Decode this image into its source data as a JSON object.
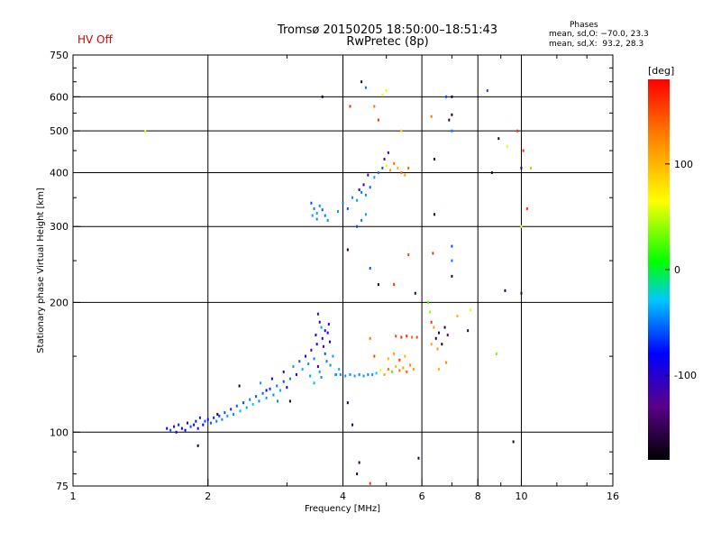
{
  "header": {
    "status": "HV Off",
    "status_color": "#d20000",
    "title_line1": "Tromsø 20150205 18:50:00–18:51:43",
    "title_line2": "RwPretec (8p)",
    "phases_label": "Phases",
    "phases_o": "mean, sd,O: −70.0, 23.3",
    "phases_x": "mean, sd,X:  93.2, 28.3"
  },
  "chart_data": {
    "type": "scatter",
    "xlabel": "Frequency [MHz]",
    "ylabel": "Stationary phase Virtual Height [km]",
    "xscale": "log",
    "yscale": "log",
    "xlim": [
      1,
      16
    ],
    "ylim": [
      75,
      750
    ],
    "x_ticks": [
      1,
      2,
      4,
      6,
      8,
      10,
      16
    ],
    "x_tick_labels": [
      "1",
      "2",
      "4",
      "6",
      "8",
      "10",
      "16"
    ],
    "x_grid": [
      2,
      4,
      6,
      8,
      10
    ],
    "y_ticks": [
      75,
      100,
      200,
      300,
      400,
      500,
      600,
      750
    ],
    "y_tick_labels": [
      "75",
      "100",
      "200",
      "300",
      "400",
      "500",
      "600",
      "750"
    ],
    "y_grid": [
      100,
      200,
      300,
      400,
      500,
      600
    ],
    "colorbar": {
      "label": "[deg]",
      "range": [
        -180,
        180
      ],
      "ticks": [
        100,
        0,
        -100
      ],
      "tick_labels": [
        "100",
        "0",
        "-100"
      ]
    },
    "series": [
      {
        "name": "echoes",
        "points": [
          [
            1.45,
            498,
            60
          ],
          [
            1.62,
            102,
            -90
          ],
          [
            1.65,
            101,
            -60
          ],
          [
            1.68,
            103,
            -110
          ],
          [
            1.7,
            100,
            -95
          ],
          [
            1.72,
            104,
            -70
          ],
          [
            1.75,
            102,
            -100
          ],
          [
            1.78,
            101,
            -80
          ],
          [
            1.8,
            105,
            -105
          ],
          [
            1.83,
            103,
            -60
          ],
          [
            1.86,
            104,
            -95
          ],
          [
            1.88,
            106,
            -75
          ],
          [
            1.9,
            102,
            -100
          ],
          [
            1.92,
            108,
            -70
          ],
          [
            1.95,
            104,
            -85
          ],
          [
            1.97,
            106,
            -60
          ],
          [
            2.0,
            107,
            -80
          ],
          [
            2.03,
            105,
            -55
          ],
          [
            2.06,
            108,
            -70
          ],
          [
            2.09,
            106,
            -50
          ],
          [
            2.12,
            109,
            -65
          ],
          [
            2.15,
            107,
            -45
          ],
          [
            2.18,
            111,
            -60
          ],
          [
            2.21,
            109,
            -40
          ],
          [
            2.25,
            113,
            -70
          ],
          [
            2.28,
            110,
            -45
          ],
          [
            2.32,
            115,
            -55
          ],
          [
            2.36,
            112,
            -35
          ],
          [
            2.4,
            117,
            -65
          ],
          [
            2.44,
            114,
            -40
          ],
          [
            2.48,
            119,
            -50
          ],
          [
            2.52,
            116,
            -30
          ],
          [
            2.56,
            121,
            -60
          ],
          [
            2.6,
            118,
            -45
          ],
          [
            2.65,
            123,
            -55
          ],
          [
            2.7,
            120,
            -40
          ],
          [
            2.75,
            126,
            -70
          ],
          [
            2.8,
            122,
            -45
          ],
          [
            2.85,
            128,
            -50
          ],
          [
            2.9,
            125,
            -35
          ],
          [
            2.95,
            131,
            -60
          ],
          [
            3.0,
            127,
            -90
          ],
          [
            2.62,
            130,
            -40
          ],
          [
            2.7,
            125,
            -95
          ],
          [
            2.78,
            133,
            -100
          ],
          [
            2.86,
            118,
            -45
          ],
          [
            2.95,
            138,
            -105
          ],
          [
            3.05,
            133,
            -50
          ],
          [
            3.1,
            142,
            -40
          ],
          [
            3.15,
            136,
            -95
          ],
          [
            3.2,
            146,
            -60
          ],
          [
            3.25,
            140,
            -35
          ],
          [
            3.3,
            150,
            -100
          ],
          [
            3.35,
            144,
            -45
          ],
          [
            3.4,
            155,
            -110
          ],
          [
            3.45,
            148,
            -50
          ],
          [
            3.5,
            160,
            -95
          ],
          [
            3.55,
            138,
            -40
          ],
          [
            3.6,
            165,
            -105
          ],
          [
            3.65,
            152,
            -60
          ],
          [
            3.7,
            170,
            -90
          ],
          [
            3.75,
            143,
            -45
          ],
          [
            3.38,
            135,
            -40
          ],
          [
            3.45,
            130,
            -35
          ],
          [
            3.52,
            142,
            -100
          ],
          [
            3.58,
            134,
            -45
          ],
          [
            3.62,
            158,
            -110
          ],
          [
            3.68,
            146,
            -50
          ],
          [
            3.74,
            162,
            -95
          ],
          [
            3.8,
            150,
            -40
          ],
          [
            3.86,
            136,
            -60
          ],
          [
            3.92,
            140,
            -35
          ],
          [
            3.52,
            188,
            -105
          ],
          [
            3.55,
            180,
            -95
          ],
          [
            3.58,
            175,
            -40
          ],
          [
            3.48,
            168,
            -110
          ],
          [
            3.65,
            172,
            -90
          ],
          [
            3.72,
            178,
            -100
          ],
          [
            3.85,
            136,
            -40
          ],
          [
            3.95,
            136,
            -45
          ],
          [
            4.05,
            135,
            -40
          ],
          [
            4.15,
            136,
            -45
          ],
          [
            4.25,
            135,
            -40
          ],
          [
            4.35,
            136,
            -45
          ],
          [
            4.45,
            135,
            -40
          ],
          [
            4.55,
            136,
            -45
          ],
          [
            4.65,
            136,
            -40
          ],
          [
            4.75,
            137,
            -30
          ],
          [
            4.85,
            139,
            60
          ],
          [
            4.95,
            136,
            110
          ],
          [
            5.05,
            140,
            130
          ],
          [
            5.15,
            138,
            20
          ],
          [
            5.25,
            142,
            100
          ],
          [
            5.35,
            139,
            130
          ],
          [
            5.45,
            141,
            110
          ],
          [
            5.55,
            138,
            140
          ],
          [
            5.65,
            143,
            120
          ],
          [
            5.75,
            140,
            110
          ],
          [
            5.05,
            148,
            100
          ],
          [
            5.2,
            152,
            110
          ],
          [
            5.35,
            147,
            160
          ],
          [
            5.5,
            150,
            100
          ],
          [
            4.7,
            150,
            150
          ],
          [
            4.6,
            165,
            130
          ],
          [
            5.25,
            167,
            150
          ],
          [
            5.4,
            166,
            160
          ],
          [
            5.55,
            167,
            170
          ],
          [
            5.7,
            166,
            130
          ],
          [
            5.85,
            166,
            150
          ],
          [
            6.2,
            200,
            20
          ],
          [
            6.25,
            190,
            40
          ],
          [
            6.3,
            180,
            160
          ],
          [
            6.38,
            175,
            110
          ],
          [
            6.45,
            165,
            -160
          ],
          [
            6.55,
            170,
            -150
          ],
          [
            6.65,
            160,
            -170
          ],
          [
            6.75,
            175,
            -160
          ],
          [
            6.85,
            168,
            -140
          ],
          [
            6.3,
            160,
            110
          ],
          [
            6.5,
            156,
            110
          ],
          [
            7.2,
            186,
            100
          ],
          [
            7.7,
            192,
            60
          ],
          [
            7.6,
            172,
            -160
          ],
          [
            6.8,
            145,
            120
          ],
          [
            6.55,
            140,
            100
          ],
          [
            8.8,
            152,
            30
          ],
          [
            9.2,
            213,
            -160
          ],
          [
            9.6,
            95,
            -160
          ],
          [
            10.0,
            210,
            -160
          ],
          [
            3.4,
            340,
            -60
          ],
          [
            3.45,
            330,
            -50
          ],
          [
            3.5,
            322,
            -40
          ],
          [
            3.55,
            335,
            -45
          ],
          [
            3.6,
            328,
            -60
          ],
          [
            3.65,
            318,
            -50
          ],
          [
            3.5,
            312,
            -45
          ],
          [
            3.42,
            318,
            -40
          ],
          [
            3.7,
            310,
            -45
          ],
          [
            3.9,
            325,
            -40
          ],
          [
            4.0,
            340,
            -50
          ],
          [
            4.1,
            330,
            -60
          ],
          [
            4.2,
            350,
            -45
          ],
          [
            4.3,
            345,
            -40
          ],
          [
            4.4,
            360,
            -50
          ],
          [
            4.5,
            355,
            -45
          ],
          [
            4.6,
            370,
            -55
          ],
          [
            4.7,
            390,
            -40
          ],
          [
            4.8,
            400,
            -50
          ],
          [
            4.9,
            410,
            -60
          ],
          [
            5.0,
            415,
            60
          ],
          [
            5.1,
            405,
            110
          ],
          [
            5.2,
            420,
            130
          ],
          [
            5.3,
            410,
            100
          ],
          [
            5.4,
            400,
            130
          ],
          [
            5.5,
            395,
            110
          ],
          [
            5.6,
            410,
            140
          ],
          [
            4.3,
            300,
            -60
          ],
          [
            4.4,
            310,
            -50
          ],
          [
            4.5,
            320,
            -40
          ],
          [
            4.35,
            365,
            -110
          ],
          [
            4.45,
            375,
            -100
          ],
          [
            4.55,
            395,
            -110
          ],
          [
            4.95,
            430,
            -110
          ],
          [
            5.05,
            445,
            -110
          ],
          [
            4.1,
            265,
            -160
          ],
          [
            4.6,
            240,
            -60
          ],
          [
            5.2,
            220,
            160
          ],
          [
            5.6,
            258,
            150
          ],
          [
            5.8,
            210,
            -160
          ],
          [
            4.8,
            220,
            -160
          ],
          [
            3.6,
            600,
            -160
          ],
          [
            4.15,
            570,
            160
          ],
          [
            4.4,
            650,
            -160
          ],
          [
            4.5,
            630,
            -50
          ],
          [
            4.7,
            570,
            130
          ],
          [
            4.8,
            530,
            160
          ],
          [
            4.9,
            605,
            60
          ],
          [
            5.0,
            620,
            70
          ],
          [
            5.4,
            500,
            80
          ],
          [
            6.3,
            540,
            130
          ],
          [
            6.9,
            530,
            -160
          ],
          [
            7.0,
            500,
            -50
          ],
          [
            7.0,
            545,
            -160
          ],
          [
            6.8,
            600,
            -60
          ],
          [
            7.0,
            600,
            -160
          ],
          [
            6.4,
            430,
            -160
          ],
          [
            6.4,
            320,
            -160
          ],
          [
            7.0,
            270,
            -60
          ],
          [
            7.0,
            250,
            -50
          ],
          [
            7.0,
            230,
            -160
          ],
          [
            6.35,
            260,
            160
          ],
          [
            8.4,
            620,
            -60
          ],
          [
            8.6,
            400,
            -160
          ],
          [
            8.9,
            480,
            -160
          ],
          [
            9.3,
            460,
            60
          ],
          [
            9.8,
            500,
            160
          ],
          [
            10.1,
            450,
            160
          ],
          [
            10.0,
            300,
            60
          ],
          [
            10.3,
            330,
            160
          ],
          [
            10.0,
            410,
            -160
          ],
          [
            10.5,
            410,
            100
          ],
          [
            3.05,
            118,
            -160
          ],
          [
            2.35,
            128,
            -160
          ],
          [
            2.1,
            110,
            -160
          ],
          [
            4.2,
            104,
            -160
          ],
          [
            4.3,
            80,
            -160
          ],
          [
            4.35,
            85,
            -160
          ],
          [
            4.1,
            117,
            -160
          ],
          [
            4.6,
            76,
            160
          ],
          [
            5.9,
            87,
            -160
          ],
          [
            1.9,
            93,
            -160
          ]
        ]
      }
    ]
  }
}
